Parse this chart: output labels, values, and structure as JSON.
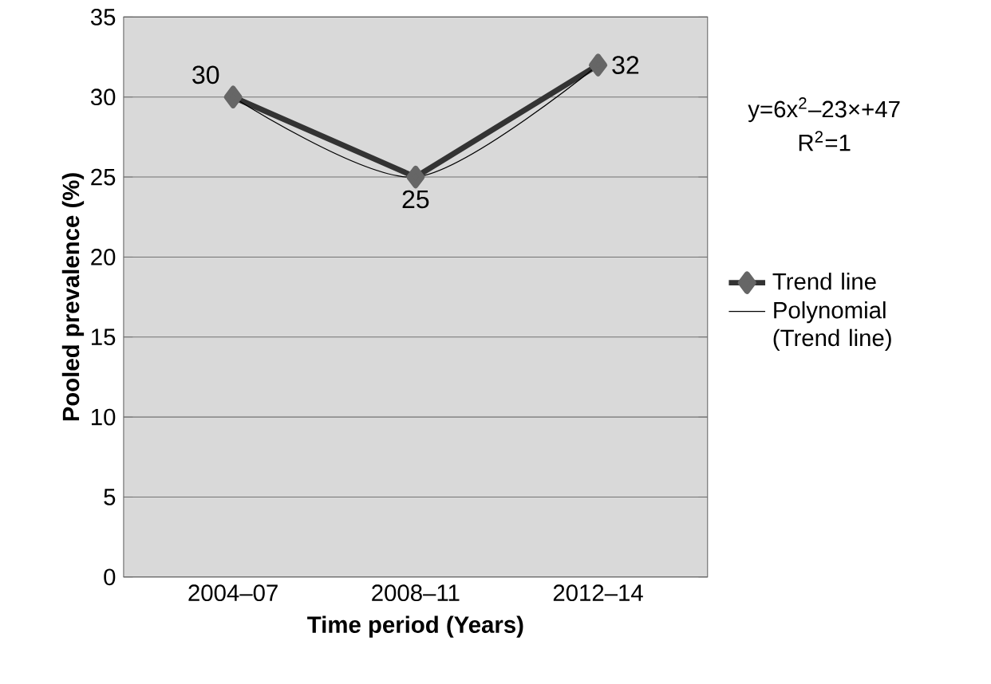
{
  "chart_data": {
    "type": "line",
    "categories": [
      "2004–07",
      "2008–11",
      "2012–14"
    ],
    "series": [
      {
        "name": "Trend line",
        "color": "#333333",
        "values": [
          30,
          25,
          32
        ],
        "value_labels": [
          "30",
          "25",
          "32"
        ],
        "marker": "diamond"
      },
      {
        "name": "Polynomial (Trend line)",
        "color": "#000000",
        "values": [
          30,
          25,
          32
        ],
        "marker": "none"
      }
    ],
    "xlabel": "Time period (Years)",
    "ylabel": "Pooled prevalence (%)",
    "ylim": [
      0,
      35
    ],
    "yticks": [
      0,
      5,
      10,
      15,
      20,
      25,
      30,
      35
    ],
    "grid": "y",
    "legend": "right",
    "line_style": "solid",
    "annotations": [
      "y=6x$^{2}$–23×+47",
      "R$^{2}$=1"
    ]
  }
}
